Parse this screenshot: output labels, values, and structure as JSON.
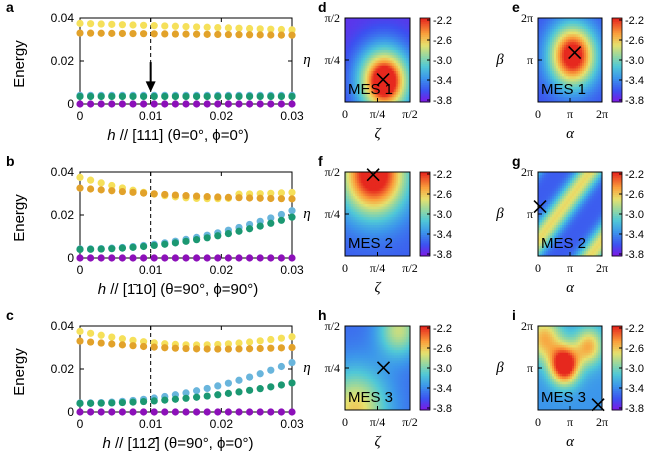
{
  "figure": {
    "colors": {
      "yellow": "#f5e05a",
      "orange": "#e2a22a",
      "lightblue": "#69b5dc",
      "green": "#1b9872",
      "purple": "#8c10b9",
      "axis": "#000000"
    }
  },
  "chart_data": [
    {
      "panel": "a",
      "type": "scatter",
      "ylabel": "Energy",
      "xlabel_prefix": "h",
      "xlabel_dir": "// [111]",
      "xlabel_angles": "(θ=0°, ϕ=0°)",
      "xlim": [
        0,
        0.03
      ],
      "ylim": [
        0,
        0.04
      ],
      "xticks": [
        "0",
        "0.01",
        "0.02",
        "0.03"
      ],
      "yticks": [
        "0",
        "0.02",
        "0.04"
      ],
      "marker_line": 0.01,
      "arrow": true,
      "series": [
        {
          "name": "level 5",
          "color": "#f5e05a",
          "start": 0.0375,
          "end": 0.0345,
          "shape": "lin"
        },
        {
          "name": "level 4",
          "color": "#e2a22a",
          "start": 0.033,
          "end": 0.032,
          "shape": "lin"
        },
        {
          "name": "level 3",
          "color": "#69b5dc",
          "start": 0.004,
          "end": 0.004,
          "shape": "lin"
        },
        {
          "name": "level 2",
          "color": "#1b9872",
          "start": 0.0035,
          "end": 0.0035,
          "shape": "lin"
        },
        {
          "name": "level 1",
          "color": "#8c10b9",
          "start": 0.0,
          "end": 0.0,
          "shape": "lin"
        }
      ]
    },
    {
      "panel": "b",
      "type": "scatter",
      "ylabel": "Energy",
      "xlabel_prefix": "h",
      "xlabel_dir": "// [1̄10]",
      "xlabel_angles": "(θ=90°, ϕ=90°)",
      "xlim": [
        0,
        0.03
      ],
      "ylim": [
        0,
        0.04
      ],
      "xticks": [
        "0",
        "0.01",
        "0.02",
        "0.03"
      ],
      "yticks": [
        "0",
        "0.02",
        "0.04"
      ],
      "marker_line": 0.01,
      "arrow": false,
      "series": [
        {
          "name": "level 5",
          "color": "#f5e05a",
          "start": 0.0375,
          "end": 0.0305,
          "shape": "dip"
        },
        {
          "name": "level 4",
          "color": "#e2a22a",
          "start": 0.0325,
          "end": 0.0275,
          "shape": "bump"
        },
        {
          "name": "level 3",
          "color": "#69b5dc",
          "start": 0.0042,
          "end": 0.022,
          "shape": "quad"
        },
        {
          "name": "level 2",
          "color": "#1b9872",
          "start": 0.004,
          "end": 0.019,
          "shape": "quad"
        },
        {
          "name": "level 1",
          "color": "#8c10b9",
          "start": 0.0,
          "end": 0.0,
          "shape": "lin"
        }
      ]
    },
    {
      "panel": "c",
      "type": "scatter",
      "ylabel": "Energy",
      "xlabel_prefix": "h",
      "xlabel_dir": "// [112̄]",
      "xlabel_angles": "(θ=90°, ϕ=0°)",
      "xlim": [
        0,
        0.03
      ],
      "ylim": [
        0,
        0.04
      ],
      "xticks": [
        "0",
        "0.01",
        "0.02",
        "0.03"
      ],
      "yticks": [
        "0",
        "0.02",
        "0.04"
      ],
      "marker_line": 0.01,
      "arrow": false,
      "series": [
        {
          "name": "level 5",
          "color": "#f5e05a",
          "start": 0.0375,
          "end": 0.035,
          "shape": "dip2"
        },
        {
          "name": "level 4",
          "color": "#e2a22a",
          "start": 0.033,
          "end": 0.03,
          "shape": "bump2"
        },
        {
          "name": "level 3",
          "color": "#69b5dc",
          "start": 0.0042,
          "end": 0.023,
          "shape": "quad"
        },
        {
          "name": "level 2",
          "color": "#1b9872",
          "start": 0.004,
          "end": 0.0135,
          "shape": "quad"
        },
        {
          "name": "level 1",
          "color": "#8c10b9",
          "start": 0.0,
          "end": 0.0,
          "shape": "lin"
        }
      ]
    },
    {
      "panel": "d",
      "type": "heatmap",
      "label": "MES 1",
      "xlabel": "ζ",
      "ylabel": "η",
      "xlim": [
        0,
        1.5708
      ],
      "ylim": [
        0,
        1.5708
      ],
      "xticks": [
        "0",
        "π/4",
        "π/2"
      ],
      "yticks": [
        "π/4",
        "π/2"
      ],
      "cross": [
        0.92,
        0.42
      ],
      "blobs": [
        [
          0.95,
          0.4,
          0.45,
          1.0
        ],
        [
          0.95,
          0.4,
          0.18,
          0.35
        ]
      ],
      "base": 0.05,
      "colorbar": [
        "-2.2",
        "-2.6",
        "-3.0",
        "-3.4",
        "-3.8"
      ]
    },
    {
      "panel": "e",
      "type": "heatmap",
      "label": "MES 1",
      "xlabel": "α",
      "ylabel": "β",
      "xlim": [
        0,
        6.2832
      ],
      "ylim": [
        0,
        6.2832
      ],
      "xticks": [
        "0",
        "π",
        "2π"
      ],
      "yticks": [
        "π",
        "2π"
      ],
      "cross": [
        3.6,
        3.7
      ],
      "blobs": [
        [
          3.4,
          3.5,
          1.6,
          1.0
        ]
      ],
      "base": 0.12,
      "colorbar": [
        "-2.2",
        "-2.6",
        "-3.0",
        "-3.4",
        "-3.8"
      ]
    },
    {
      "panel": "f",
      "type": "heatmap",
      "label": "MES 2",
      "xlabel": "ζ",
      "ylabel": "η",
      "xlim": [
        0,
        1.5708
      ],
      "ylim": [
        0,
        1.5708
      ],
      "xticks": [
        "0",
        "π/4",
        "π/2"
      ],
      "yticks": [
        "π/4",
        "π/2"
      ],
      "cross": [
        0.68,
        1.52
      ],
      "blobs": [
        [
          0.7,
          1.55,
          0.55,
          1.0
        ]
      ],
      "base": 0.15,
      "colorbar": [
        "-2.2",
        "-2.6",
        "-3.0",
        "-3.4",
        "-3.8"
      ]
    },
    {
      "panel": "g",
      "type": "heatmap",
      "label": "MES 2",
      "xlabel": "α",
      "ylabel": "β",
      "xlim": [
        0,
        6.2832
      ],
      "ylim": [
        0,
        6.2832
      ],
      "xticks": [
        "0",
        "π",
        "2π"
      ],
      "yticks": [
        "π",
        "2π"
      ],
      "cross": [
        0.2,
        3.7
      ],
      "stripes": true,
      "base": 0.1,
      "colorbar": [
        "-2.2",
        "-2.6",
        "-3.0",
        "-3.4",
        "-3.8"
      ]
    },
    {
      "panel": "h",
      "type": "heatmap",
      "label": "MES 3",
      "xlabel": "ζ",
      "ylabel": "η",
      "xlim": [
        0,
        1.5708
      ],
      "ylim": [
        0,
        1.5708
      ],
      "xticks": [
        "0",
        "π/4",
        "π/2"
      ],
      "yticks": [
        "π/4",
        "π/2"
      ],
      "cross": [
        0.93,
        0.79
      ],
      "blobs": [
        [
          0.25,
          0.0,
          0.55,
          0.55
        ],
        [
          1.3,
          1.5,
          0.35,
          0.45
        ]
      ],
      "base": 0.18,
      "colorbar": [
        "-2.2",
        "-2.6",
        "-3.0",
        "-3.4",
        "-3.8"
      ]
    },
    {
      "panel": "i",
      "type": "heatmap",
      "label": "MES 3",
      "xlabel": "α",
      "ylabel": "β",
      "xlim": [
        0,
        6.2832
      ],
      "ylim": [
        0,
        6.2832
      ],
      "xticks": [
        "0",
        "π",
        "2π"
      ],
      "yticks": [
        "π",
        "2π"
      ],
      "cross": [
        5.9,
        0.4
      ],
      "blobs": [
        [
          2.6,
          3.4,
          1.0,
          0.9
        ],
        [
          5.0,
          4.8,
          1.0,
          0.5
        ],
        [
          0.6,
          5.4,
          1.2,
          0.5
        ]
      ],
      "base": 0.28,
      "colorbar": [
        "-2.2",
        "-2.6",
        "-3.0",
        "-3.4",
        "-3.8"
      ]
    }
  ]
}
